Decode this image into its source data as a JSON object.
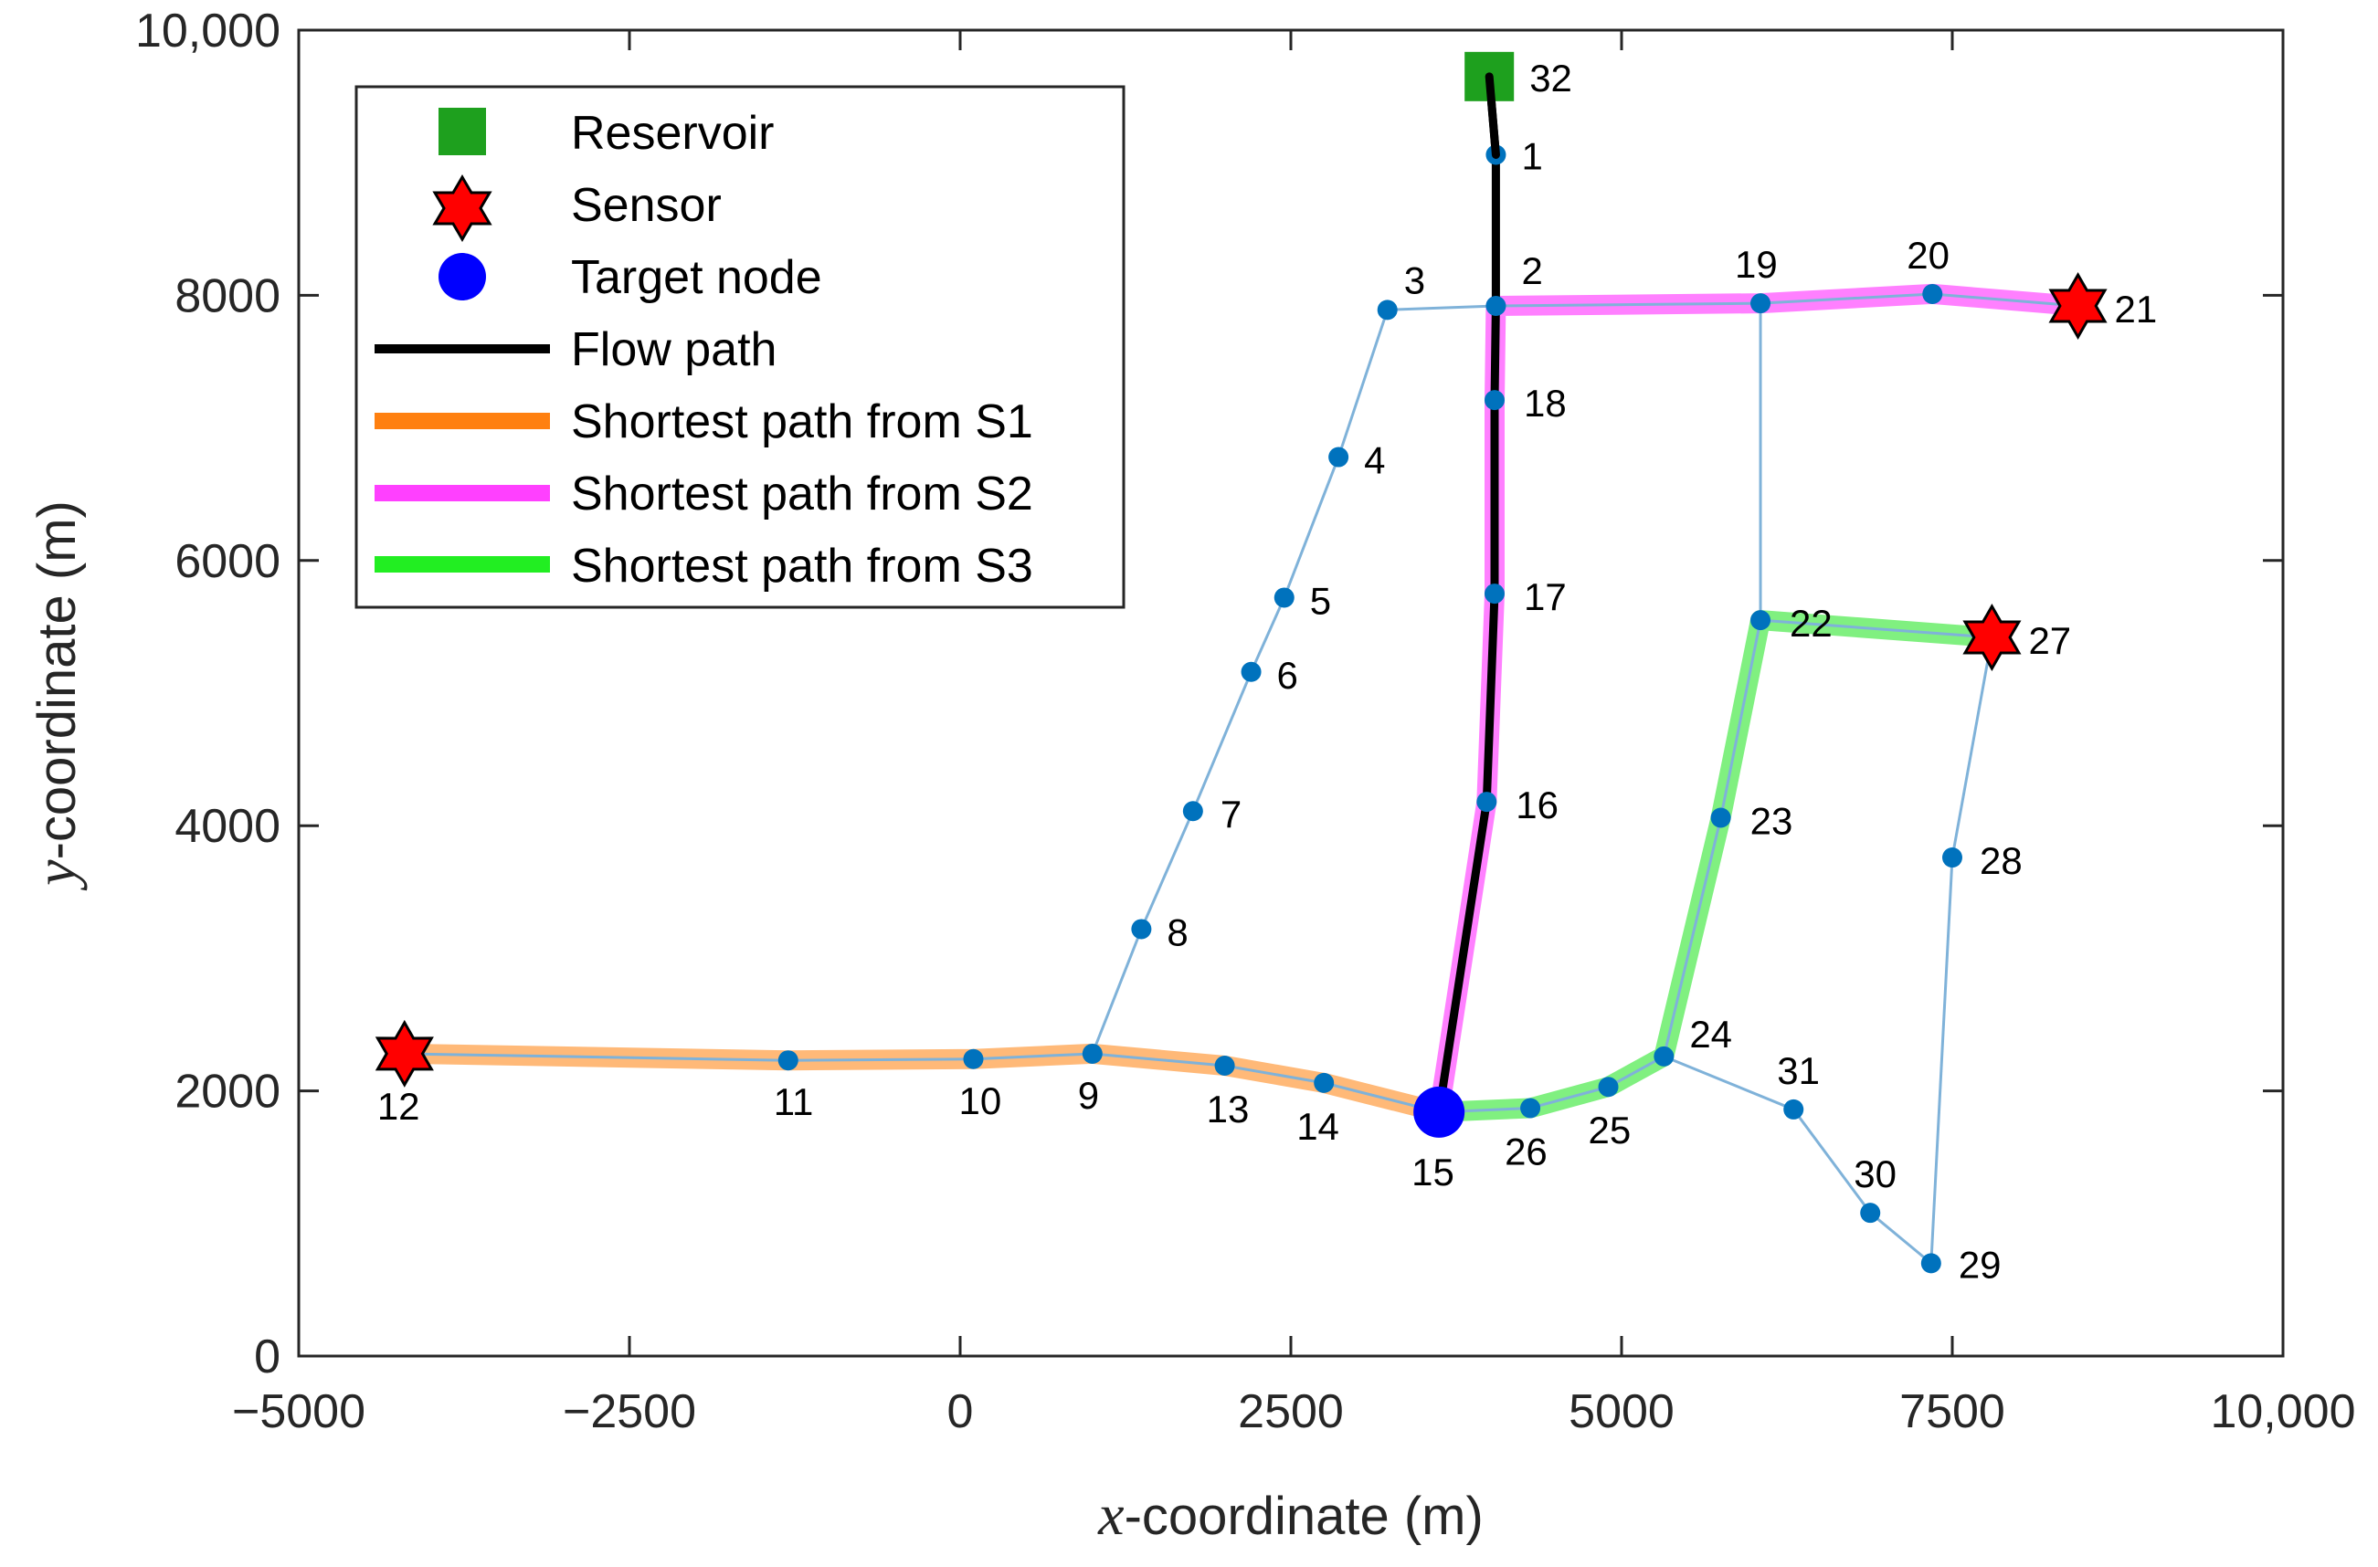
{
  "chart_data": {
    "type": "scatter",
    "title": "",
    "xlabel": {
      "var": "x",
      "text": "-coordinate (m)"
    },
    "ylabel": {
      "var": "y",
      "text": "-coordinate (m)"
    },
    "xlim": [
      -5000,
      10000
    ],
    "ylim": [
      0,
      10000
    ],
    "x_ticks": [
      {
        "value": -5000,
        "label": "−5000"
      },
      {
        "value": -2500,
        "label": "−2500"
      },
      {
        "value": 0,
        "label": "0"
      },
      {
        "value": 2500,
        "label": "2500"
      },
      {
        "value": 5000,
        "label": "5000"
      },
      {
        "value": 7500,
        "label": "7500"
      },
      {
        "value": 10000,
        "label": "10,000"
      }
    ],
    "y_ticks": [
      {
        "value": 0,
        "label": "0"
      },
      {
        "value": 2000,
        "label": "2000"
      },
      {
        "value": 4000,
        "label": "4000"
      },
      {
        "value": 6000,
        "label": "6000"
      },
      {
        "value": 8000,
        "label": "8000"
      },
      {
        "value": 10000,
        "label": "10,000"
      }
    ],
    "grid": false,
    "legend_position": "top-left",
    "colors": {
      "pipe": "#7fb2d9",
      "node": "#0072bd",
      "reservoir": "#1ea01e",
      "sensor": "#ff0000",
      "target": "#0000ff",
      "flow": "#000000",
      "s1": "#ffb978",
      "s2": "#ff80ff",
      "s3": "#80f080",
      "legend_s1": "#ff8010",
      "legend_s2": "#ff40ff",
      "legend_s3": "#22ee22"
    },
    "nodes": [
      {
        "id": "1",
        "x": 4050,
        "y": 9060
      },
      {
        "id": "2",
        "x": 4050,
        "y": 7920
      },
      {
        "id": "3",
        "x": 3230,
        "y": 7890
      },
      {
        "id": "4",
        "x": 2860,
        "y": 6780
      },
      {
        "id": "5",
        "x": 2450,
        "y": 5720
      },
      {
        "id": "6",
        "x": 2200,
        "y": 5160
      },
      {
        "id": "7",
        "x": 1760,
        "y": 4110
      },
      {
        "id": "8",
        "x": 1370,
        "y": 3220
      },
      {
        "id": "9",
        "x": 1000,
        "y": 2280
      },
      {
        "id": "10",
        "x": 100,
        "y": 2240
      },
      {
        "id": "11",
        "x": -1300,
        "y": 2230
      },
      {
        "id": "12",
        "x": -4200,
        "y": 2280
      },
      {
        "id": "13",
        "x": 2000,
        "y": 2190
      },
      {
        "id": "14",
        "x": 2750,
        "y": 2060
      },
      {
        "id": "15",
        "x": 3620,
        "y": 1840
      },
      {
        "id": "16",
        "x": 3980,
        "y": 4180
      },
      {
        "id": "17",
        "x": 4040,
        "y": 5750
      },
      {
        "id": "18",
        "x": 4040,
        "y": 7210
      },
      {
        "id": "19",
        "x": 6050,
        "y": 7940
      },
      {
        "id": "20",
        "x": 7350,
        "y": 8010
      },
      {
        "id": "21",
        "x": 8450,
        "y": 7920
      },
      {
        "id": "22",
        "x": 6050,
        "y": 5550
      },
      {
        "id": "23",
        "x": 5750,
        "y": 4060
      },
      {
        "id": "24",
        "x": 5320,
        "y": 2260
      },
      {
        "id": "25",
        "x": 4900,
        "y": 2030
      },
      {
        "id": "26",
        "x": 4310,
        "y": 1870
      },
      {
        "id": "27",
        "x": 7800,
        "y": 5420
      },
      {
        "id": "28",
        "x": 7500,
        "y": 3760
      },
      {
        "id": "29",
        "x": 7340,
        "y": 700
      },
      {
        "id": "30",
        "x": 6880,
        "y": 1080
      },
      {
        "id": "31",
        "x": 6300,
        "y": 1860
      },
      {
        "id": "32",
        "x": 4000,
        "y": 9650
      }
    ],
    "pipes": [
      [
        "32",
        "1"
      ],
      [
        "1",
        "2"
      ],
      [
        "2",
        "3"
      ],
      [
        "3",
        "4"
      ],
      [
        "4",
        "5"
      ],
      [
        "5",
        "6"
      ],
      [
        "6",
        "7"
      ],
      [
        "7",
        "8"
      ],
      [
        "8",
        "9"
      ],
      [
        "12",
        "11"
      ],
      [
        "11",
        "10"
      ],
      [
        "10",
        "9"
      ],
      [
        "9",
        "13"
      ],
      [
        "13",
        "14"
      ],
      [
        "14",
        "15"
      ],
      [
        "15",
        "16"
      ],
      [
        "16",
        "17"
      ],
      [
        "17",
        "18"
      ],
      [
        "18",
        "2"
      ],
      [
        "2",
        "19"
      ],
      [
        "19",
        "20"
      ],
      [
        "20",
        "21"
      ],
      [
        "19",
        "22"
      ],
      [
        "22",
        "27"
      ],
      [
        "22",
        "23"
      ],
      [
        "23",
        "24"
      ],
      [
        "15",
        "26"
      ],
      [
        "26",
        "25"
      ],
      [
        "25",
        "24"
      ],
      [
        "24",
        "31"
      ],
      [
        "31",
        "30"
      ],
      [
        "30",
        "29"
      ],
      [
        "29",
        "28"
      ],
      [
        "28",
        "27"
      ]
    ],
    "flow_path": [
      "32",
      "1",
      "2",
      "18",
      "17",
      "16",
      "15"
    ],
    "shortest_paths": [
      {
        "name": "Shortest path from S1",
        "sensor": "12",
        "nodes": [
          "12",
          "11",
          "10",
          "9",
          "13",
          "14",
          "15"
        ]
      },
      {
        "name": "Shortest path from S2",
        "sensor": "21",
        "nodes": [
          "21",
          "20",
          "19",
          "2",
          "18",
          "17",
          "16",
          "15"
        ]
      },
      {
        "name": "Shortest path from S3",
        "sensor": "27",
        "nodes": [
          "27",
          "22",
          "23",
          "24",
          "25",
          "26",
          "15"
        ]
      }
    ],
    "reservoir_node": "32",
    "sensor_nodes": [
      "12",
      "21",
      "27"
    ],
    "target_node": "15",
    "legend": {
      "reservoir": "Reservoir",
      "sensor": "Sensor",
      "target": "Target node",
      "flow": "Flow path",
      "s1": "Shortest path from S1",
      "s2": "Shortest path from S2",
      "s3": "Shortest path from S3"
    }
  }
}
